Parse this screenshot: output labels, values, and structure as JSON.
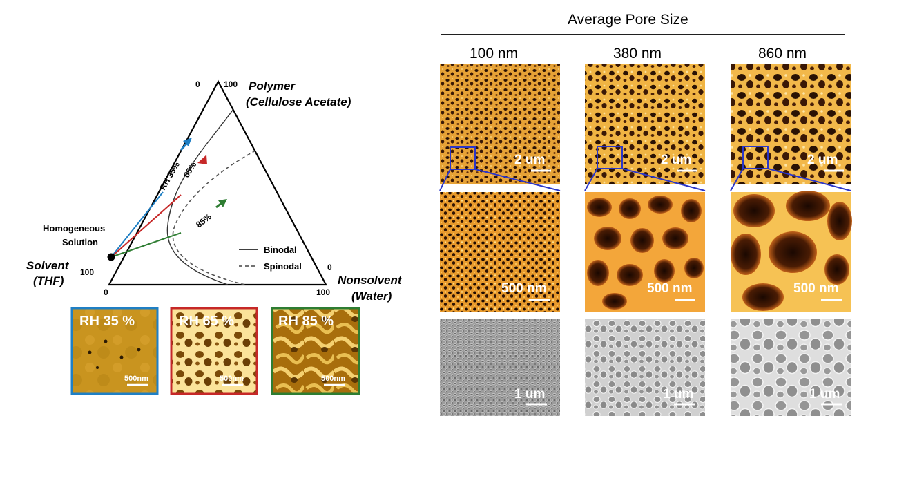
{
  "ternary": {
    "vertex_top_label_1": "Polymer",
    "vertex_top_label_2": "(Cellulose Acetate)",
    "vertex_left_label_1": "Solvent",
    "vertex_left_label_2": "(THF)",
    "vertex_right_label_1": "Nonsolvent",
    "vertex_right_label_2": "(Water)",
    "tick_top_left": "0",
    "tick_top_right": "100",
    "tick_left_top": "100",
    "tick_left_bottom": "0",
    "tick_right_top": "0",
    "tick_right_bottom": "100",
    "start_label_1": "Homogeneous",
    "start_label_2": "Solution",
    "path_labels": [
      "RH 35%",
      "65%",
      "85%"
    ],
    "legend": {
      "binodal": "Binodal",
      "spinodal": "Spinodal"
    },
    "colors": {
      "rh35": "#1f7fc4",
      "rh65": "#c62828",
      "rh85": "#2e7d32"
    }
  },
  "rh_panels": [
    {
      "label": "RH 35 %",
      "scale": "500nm",
      "border": "#1f7fc4"
    },
    {
      "label": "RH 65 %",
      "scale": "500nm",
      "border": "#c62828"
    },
    {
      "label": "RH 85 %",
      "scale": "500nm",
      "border": "#2e7d32"
    }
  ],
  "pore_grid": {
    "title": "Average Pore Size",
    "columns": [
      "100 nm",
      "380 nm",
      "860 nm"
    ],
    "afm_scale": "2 um",
    "afm_zoom_scale": "500 nm",
    "sem_scale": "1 um"
  }
}
